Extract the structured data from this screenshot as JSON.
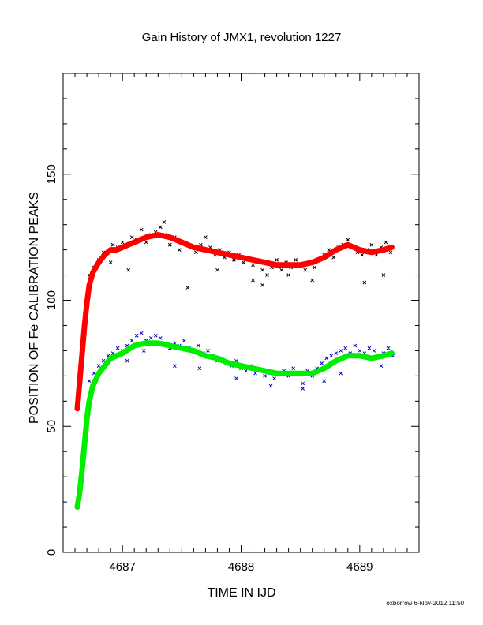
{
  "chart_data": {
    "type": "scatter",
    "title": "Gain History of JMX1, revolution 1227",
    "xlabel": "TIME IN IJD",
    "ylabel": "POSITION OF Fe CALIBRATION PEAKS",
    "xlim": [
      4686.5,
      4689.5
    ],
    "ylim": [
      0,
      190
    ],
    "x_ticks": [
      4687,
      4688,
      4689
    ],
    "y_ticks": [
      0,
      50,
      100,
      150
    ],
    "grid": false,
    "footer": "oxborrow  6-Nov-2012 11:50",
    "series": [
      {
        "style": "scatter-x",
        "color": "#000000",
        "points": [
          [
            4686.72,
            110
          ],
          [
            4686.76,
            113
          ],
          [
            4686.8,
            116
          ],
          [
            4686.84,
            119
          ],
          [
            4686.88,
            120
          ],
          [
            4686.92,
            122
          ],
          [
            4686.96,
            121
          ],
          [
            4687.0,
            123
          ],
          [
            4687.04,
            122
          ],
          [
            4687.08,
            125
          ],
          [
            4687.12,
            124
          ],
          [
            4687.16,
            128
          ],
          [
            4687.2,
            123
          ],
          [
            4687.24,
            126
          ],
          [
            4687.28,
            127
          ],
          [
            4687.32,
            129
          ],
          [
            4687.36,
            126
          ],
          [
            4687.4,
            122
          ],
          [
            4687.44,
            125
          ],
          [
            4687.48,
            120
          ],
          [
            4687.52,
            123
          ],
          [
            4687.55,
            105
          ],
          [
            4687.58,
            121
          ],
          [
            4687.62,
            119
          ],
          [
            4687.66,
            122
          ],
          [
            4687.7,
            125
          ],
          [
            4687.74,
            121
          ],
          [
            4687.78,
            118
          ],
          [
            4687.82,
            120
          ],
          [
            4687.86,
            117
          ],
          [
            4687.9,
            119
          ],
          [
            4687.94,
            116
          ],
          [
            4687.98,
            118
          ],
          [
            4688.02,
            115
          ],
          [
            4688.06,
            117
          ],
          [
            4688.1,
            114
          ],
          [
            4688.14,
            116
          ],
          [
            4688.18,
            112
          ],
          [
            4688.22,
            110
          ],
          [
            4688.26,
            113
          ],
          [
            4688.3,
            116
          ],
          [
            4688.34,
            112
          ],
          [
            4688.38,
            115
          ],
          [
            4688.42,
            113
          ],
          [
            4688.46,
            116
          ],
          [
            4688.5,
            114
          ],
          [
            4688.54,
            112
          ],
          [
            4688.58,
            115
          ],
          [
            4688.62,
            113
          ],
          [
            4688.66,
            116
          ],
          [
            4688.7,
            118
          ],
          [
            4688.74,
            120
          ],
          [
            4688.78,
            117
          ],
          [
            4688.82,
            121
          ],
          [
            4688.86,
            122
          ],
          [
            4688.9,
            124
          ],
          [
            4688.94,
            121
          ],
          [
            4688.98,
            119
          ],
          [
            4689.02,
            118
          ],
          [
            4689.06,
            120
          ],
          [
            4689.1,
            122
          ],
          [
            4689.14,
            118
          ],
          [
            4689.18,
            121
          ],
          [
            4689.22,
            123
          ],
          [
            4689.26,
            119
          ],
          [
            4689.04,
            107
          ],
          [
            4688.18,
            106
          ],
          [
            4688.6,
            108
          ],
          [
            4687.05,
            112
          ],
          [
            4689.2,
            110
          ],
          [
            4686.9,
            115
          ],
          [
            4687.35,
            131
          ],
          [
            4688.1,
            108
          ],
          [
            4687.8,
            112
          ],
          [
            4688.4,
            110
          ]
        ]
      },
      {
        "style": "scatter-x",
        "color": "#0000cc",
        "points": [
          [
            4686.72,
            68
          ],
          [
            4686.76,
            71
          ],
          [
            4686.8,
            74
          ],
          [
            4686.84,
            76
          ],
          [
            4686.88,
            78
          ],
          [
            4686.92,
            79
          ],
          [
            4686.96,
            81
          ],
          [
            4687.0,
            80
          ],
          [
            4687.04,
            82
          ],
          [
            4687.08,
            84
          ],
          [
            4687.12,
            86
          ],
          [
            4687.16,
            87
          ],
          [
            4687.2,
            84
          ],
          [
            4687.24,
            85
          ],
          [
            4687.28,
            86
          ],
          [
            4687.32,
            85
          ],
          [
            4687.36,
            83
          ],
          [
            4687.4,
            81
          ],
          [
            4687.44,
            83
          ],
          [
            4687.48,
            82
          ],
          [
            4687.52,
            84
          ],
          [
            4687.56,
            81
          ],
          [
            4687.6,
            80
          ],
          [
            4687.64,
            82
          ],
          [
            4687.68,
            79
          ],
          [
            4687.72,
            80
          ],
          [
            4687.76,
            78
          ],
          [
            4687.8,
            76
          ],
          [
            4687.84,
            77
          ],
          [
            4687.88,
            75
          ],
          [
            4687.92,
            74
          ],
          [
            4687.96,
            76
          ],
          [
            4688.0,
            73
          ],
          [
            4688.04,
            72
          ],
          [
            4688.08,
            74
          ],
          [
            4688.12,
            71
          ],
          [
            4688.16,
            72
          ],
          [
            4688.2,
            70
          ],
          [
            4688.24,
            71
          ],
          [
            4688.28,
            69
          ],
          [
            4688.32,
            71
          ],
          [
            4688.36,
            72
          ],
          [
            4688.4,
            70
          ],
          [
            4688.44,
            73
          ],
          [
            4688.48,
            71
          ],
          [
            4688.52,
            65
          ],
          [
            4688.56,
            72
          ],
          [
            4688.6,
            70
          ],
          [
            4688.64,
            73
          ],
          [
            4688.68,
            75
          ],
          [
            4688.72,
            77
          ],
          [
            4688.76,
            78
          ],
          [
            4688.8,
            79
          ],
          [
            4688.84,
            80
          ],
          [
            4688.88,
            81
          ],
          [
            4688.92,
            79
          ],
          [
            4688.96,
            82
          ],
          [
            4689.0,
            80
          ],
          [
            4689.04,
            79
          ],
          [
            4689.08,
            81
          ],
          [
            4689.12,
            80
          ],
          [
            4689.16,
            78
          ],
          [
            4689.2,
            79
          ],
          [
            4689.24,
            81
          ],
          [
            4689.28,
            78
          ],
          [
            4687.04,
            76
          ],
          [
            4687.44,
            74
          ],
          [
            4688.52,
            67
          ],
          [
            4687.96,
            69
          ],
          [
            4688.84,
            71
          ],
          [
            4689.18,
            74
          ],
          [
            4687.18,
            80
          ],
          [
            4688.25,
            66
          ],
          [
            4687.65,
            73
          ],
          [
            4688.7,
            68
          ]
        ]
      },
      {
        "style": "thick-line-red",
        "color": "#ff0000",
        "points": [
          [
            4686.62,
            57
          ],
          [
            4686.64,
            68
          ],
          [
            4686.66,
            79
          ],
          [
            4686.68,
            90
          ],
          [
            4686.7,
            99
          ],
          [
            4686.72,
            106
          ],
          [
            4686.75,
            111
          ],
          [
            4686.8,
            115
          ],
          [
            4686.85,
            118
          ],
          [
            4686.9,
            120
          ],
          [
            4686.95,
            120
          ],
          [
            4687.0,
            121
          ],
          [
            4687.1,
            123
          ],
          [
            4687.2,
            125
          ],
          [
            4687.3,
            126
          ],
          [
            4687.4,
            125
          ],
          [
            4687.5,
            123
          ],
          [
            4687.6,
            121
          ],
          [
            4687.7,
            120
          ],
          [
            4687.8,
            119
          ],
          [
            4687.9,
            118
          ],
          [
            4688.0,
            117
          ],
          [
            4688.1,
            116
          ],
          [
            4688.2,
            115
          ],
          [
            4688.3,
            114
          ],
          [
            4688.4,
            114
          ],
          [
            4688.5,
            114
          ],
          [
            4688.6,
            115
          ],
          [
            4688.7,
            117
          ],
          [
            4688.8,
            120
          ],
          [
            4688.9,
            122
          ],
          [
            4689.0,
            120
          ],
          [
            4689.1,
            119
          ],
          [
            4689.2,
            120
          ],
          [
            4689.27,
            121
          ]
        ]
      },
      {
        "style": "thick-line-green",
        "color": "#00ee00",
        "points": [
          [
            4686.62,
            18
          ],
          [
            4686.64,
            24
          ],
          [
            4686.66,
            33
          ],
          [
            4686.68,
            43
          ],
          [
            4686.7,
            53
          ],
          [
            4686.72,
            60
          ],
          [
            4686.75,
            66
          ],
          [
            4686.8,
            71
          ],
          [
            4686.85,
            74
          ],
          [
            4686.9,
            77
          ],
          [
            4687.0,
            79
          ],
          [
            4687.1,
            82
          ],
          [
            4687.2,
            83
          ],
          [
            4687.3,
            83
          ],
          [
            4687.4,
            82
          ],
          [
            4687.5,
            81
          ],
          [
            4687.6,
            80
          ],
          [
            4687.7,
            78
          ],
          [
            4687.8,
            77
          ],
          [
            4687.9,
            75
          ],
          [
            4688.0,
            74
          ],
          [
            4688.1,
            73
          ],
          [
            4688.2,
            72
          ],
          [
            4688.3,
            71
          ],
          [
            4688.4,
            71
          ],
          [
            4688.5,
            71
          ],
          [
            4688.6,
            71
          ],
          [
            4688.7,
            73
          ],
          [
            4688.8,
            76
          ],
          [
            4688.9,
            78
          ],
          [
            4689.0,
            78
          ],
          [
            4689.1,
            77
          ],
          [
            4689.2,
            78
          ],
          [
            4689.27,
            79
          ]
        ]
      }
    ]
  }
}
